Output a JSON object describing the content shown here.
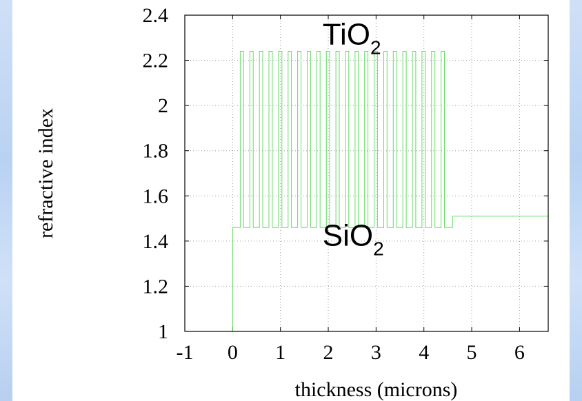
{
  "chart_data": {
    "type": "line",
    "title": "",
    "xlabel": "thickness (microns)",
    "ylabel": "refractive index",
    "xlim": [
      -1,
      6.6
    ],
    "ylim": [
      1,
      2.4
    ],
    "xticks": [
      "-1",
      "0",
      "1",
      "2",
      "3",
      "4",
      "5",
      "6"
    ],
    "yticks": [
      "1",
      "1.2",
      "1.4",
      "1.6",
      "1.8",
      "2",
      "2.2",
      "2.4"
    ],
    "grid": true,
    "series_color": "#66dd66",
    "annotations": [
      {
        "text": "TiO",
        "sub": "2",
        "x": 2.4,
        "y": 2.27
      },
      {
        "text": "SiO",
        "sub": "2",
        "x": 2.4,
        "y": 1.38
      }
    ],
    "profile": {
      "ambient_index": 1.0,
      "substrate_start": 0.0,
      "low_index": 1.46,
      "high_index": 2.24,
      "stack_start": 0.16,
      "high_layer_thickness": 0.07,
      "period": 0.2,
      "periods": 22,
      "stack_end": 4.6,
      "exit_index": 1.51
    }
  }
}
